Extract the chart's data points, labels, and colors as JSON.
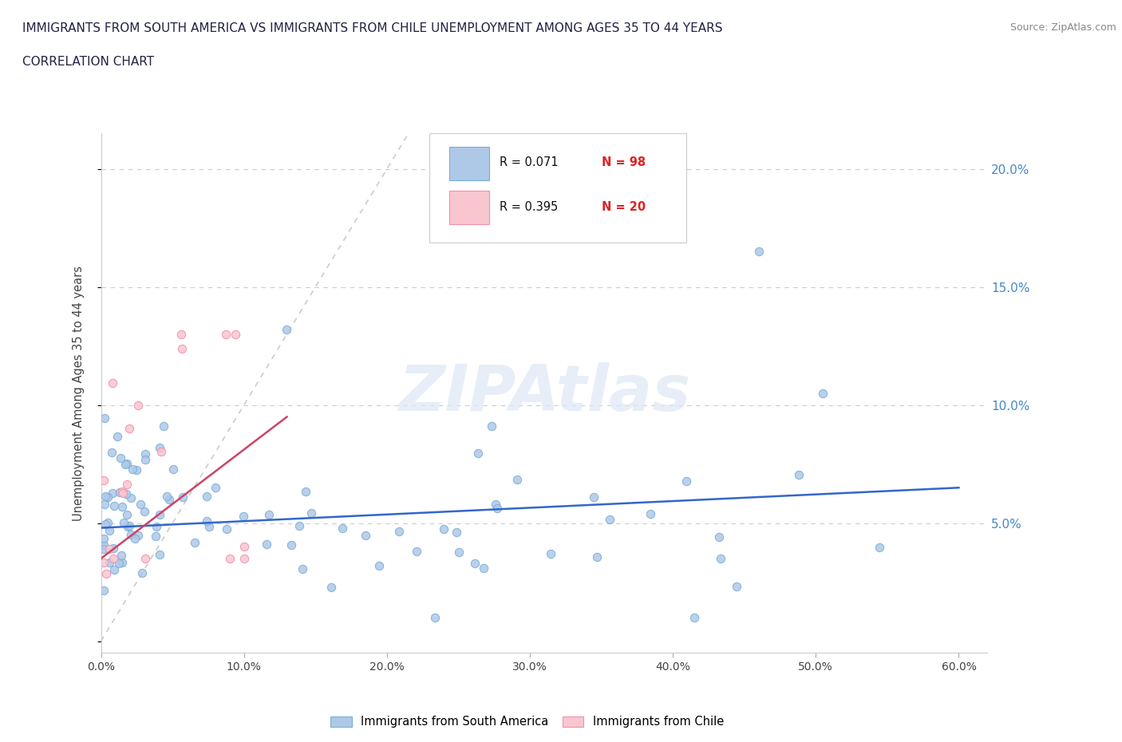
{
  "title_line1": "IMMIGRANTS FROM SOUTH AMERICA VS IMMIGRANTS FROM CHILE UNEMPLOYMENT AMONG AGES 35 TO 44 YEARS",
  "title_line2": "CORRELATION CHART",
  "source_text": "Source: ZipAtlas.com",
  "watermark": "ZIPAtlas",
  "ylabel": "Unemployment Among Ages 35 to 44 years",
  "xlim": [
    0.0,
    0.62
  ],
  "ylim": [
    -0.005,
    0.215
  ],
  "xtick_vals": [
    0.0,
    0.1,
    0.2,
    0.3,
    0.4,
    0.5,
    0.6
  ],
  "xtick_labels": [
    "0.0%",
    "10.0%",
    "20.0%",
    "30.0%",
    "40.0%",
    "50.0%",
    "60.0%"
  ],
  "ytick_vals": [
    0.0,
    0.05,
    0.1,
    0.15,
    0.2
  ],
  "ytick_labels_right": [
    "",
    "5.0%",
    "10.0%",
    "15.0%",
    "20.0%"
  ],
  "blue_fill_color": "#aec8e8",
  "blue_edge_color": "#7aaed6",
  "pink_fill_color": "#f9c6d0",
  "pink_edge_color": "#f090a8",
  "blue_line_color": "#3366cc",
  "pink_line_color": "#cc4466",
  "diag_line_color": "#cccccc",
  "right_axis_color": "#4488cc",
  "R_blue": 0.071,
  "N_blue": 98,
  "R_pink": 0.395,
  "N_pink": 20,
  "background_color": "#ffffff",
  "title_color": "#222244",
  "source_color": "#888888",
  "legend_text_color": "#111111",
  "legend_N_color": "#dd2222"
}
